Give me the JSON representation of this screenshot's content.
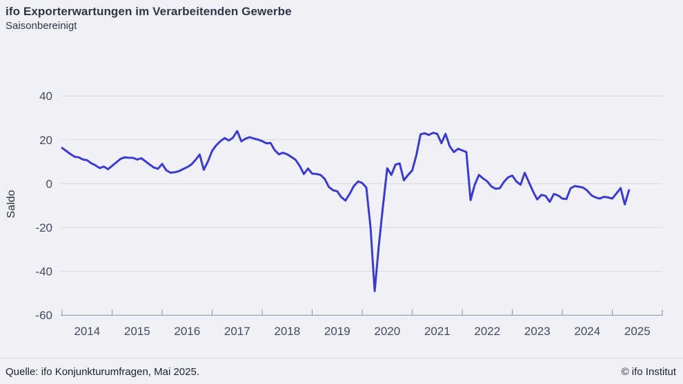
{
  "header": {
    "title": "ifo Exporterwartungen im Verarbeitenden Gewerbe",
    "subtitle": "Saisonbereinigt"
  },
  "footer": {
    "source": "Quelle: ifo Konjunkturumfragen, Mai 2025.",
    "copyright": "© ifo Institut"
  },
  "colors": {
    "background": "#f0f1f6",
    "grid": "#d6d7dd",
    "axis": "#868c97",
    "tick_text": "#454a55",
    "line": "#3a3ad1"
  },
  "chart_data": {
    "type": "line",
    "title": "ifo Exporterwartungen im Verarbeitenden Gewerbe",
    "subtitle": "Saisonbereinigt",
    "ylabel": "Saldo",
    "xlabel": "",
    "ylim": [
      -60,
      40
    ],
    "yticks": [
      40,
      20,
      0,
      -20,
      -40,
      -60
    ],
    "x_tick_years": [
      2014,
      2015,
      2016,
      2017,
      2018,
      2019,
      2020,
      2021,
      2022,
      2023,
      2024,
      2025
    ],
    "x_unit": "month",
    "grid": true,
    "legend": false,
    "series": [
      {
        "name": "Exporterwartungen (Saldo, saisonbereinigt)",
        "color": "#3a3ad1",
        "start": "2014-01",
        "end": "2025-05",
        "values": [
          16.3,
          14.9,
          13.5,
          12.3,
          12.0,
          11.0,
          10.7,
          9.3,
          8.4,
          7.1,
          7.8,
          6.6,
          8.1,
          9.7,
          11.3,
          12.0,
          11.8,
          11.8,
          11.0,
          11.6,
          10.2,
          8.7,
          7.4,
          6.8,
          9.0,
          6.1,
          5.0,
          5.2,
          5.7,
          6.6,
          7.5,
          8.7,
          10.8,
          13.3,
          6.3,
          10.2,
          15.0,
          17.5,
          19.4,
          20.8,
          19.7,
          21.0,
          24.0,
          19.3,
          20.5,
          21.2,
          20.6,
          20.1,
          19.4,
          18.4,
          18.6,
          15.3,
          13.4,
          14.1,
          13.4,
          12.2,
          10.9,
          8.1,
          4.4,
          6.9,
          4.6,
          4.4,
          4.0,
          2.2,
          -1.5,
          -3.0,
          -3.5,
          -6.2,
          -7.7,
          -4.6,
          -1.1,
          1.0,
          0.3,
          -1.8,
          -20.0,
          -49.0,
          -28.0,
          -10.0,
          7.0,
          4.0,
          8.7,
          9.2,
          1.5,
          4.0,
          6.0,
          13.0,
          22.5,
          23.0,
          22.2,
          23.2,
          22.7,
          18.5,
          22.7,
          17.0,
          14.4,
          15.9,
          15.2,
          14.4,
          -7.5,
          -0.5,
          4.0,
          2.4,
          1.0,
          -1.3,
          -2.3,
          -2.1,
          0.8,
          2.9,
          3.7,
          1.0,
          -0.5,
          5.0,
          0.6,
          -3.6,
          -7.2,
          -5.1,
          -5.6,
          -8.3,
          -4.7,
          -5.4,
          -6.8,
          -7.0,
          -2.1,
          -1.1,
          -1.4,
          -1.8,
          -3.2,
          -5.3,
          -6.3,
          -6.8,
          -6.0,
          -6.3,
          -6.8,
          -4.5,
          -2.0,
          -9.5,
          -3.0
        ]
      }
    ]
  }
}
